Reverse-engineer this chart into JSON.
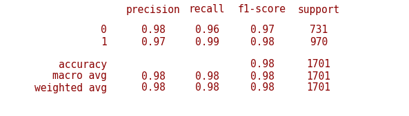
{
  "background_color": "#ffffff",
  "header": [
    "",
    "precision",
    "recall",
    "f1-score",
    "support"
  ],
  "rows": [
    {
      "label": "0",
      "precision": "0.98",
      "recall": "0.96",
      "f1_score": "0.97",
      "support": "731"
    },
    {
      "label": "1",
      "precision": "0.97",
      "recall": "0.99",
      "f1_score": "0.98",
      "support": "970"
    },
    {
      "label": "",
      "precision": "",
      "recall": "",
      "f1_score": "",
      "support": ""
    },
    {
      "label": "accuracy",
      "precision": "",
      "recall": "",
      "f1_score": "0.98",
      "support": "1701"
    },
    {
      "label": "macro avg",
      "precision": "0.98",
      "recall": "0.98",
      "f1_score": "0.98",
      "support": "1701"
    },
    {
      "label": "weighted avg",
      "precision": "0.98",
      "recall": "0.98",
      "f1_score": "0.98",
      "support": "1701"
    }
  ],
  "text_color": "#8B0000",
  "font_family": "monospace",
  "font_size": 10.5,
  "fig_width": 5.93,
  "fig_height": 1.69,
  "dpi": 100
}
